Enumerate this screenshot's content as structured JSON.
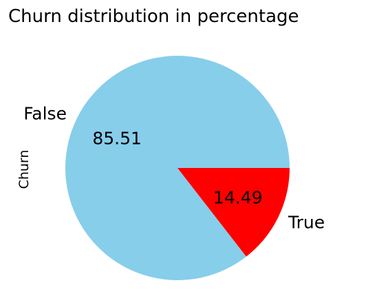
{
  "chart_data": {
    "type": "pie",
    "title": "Churn distribution in percentage",
    "ylabel": "Churn",
    "xlabel": "",
    "categories": [
      "False",
      "True"
    ],
    "values": [
      85.51,
      14.49
    ],
    "value_labels": [
      "85.51",
      "14.49"
    ],
    "colors": [
      "#87CEEB",
      "#FF0000"
    ],
    "start_angle": 0,
    "direction": "counterclockwise"
  }
}
